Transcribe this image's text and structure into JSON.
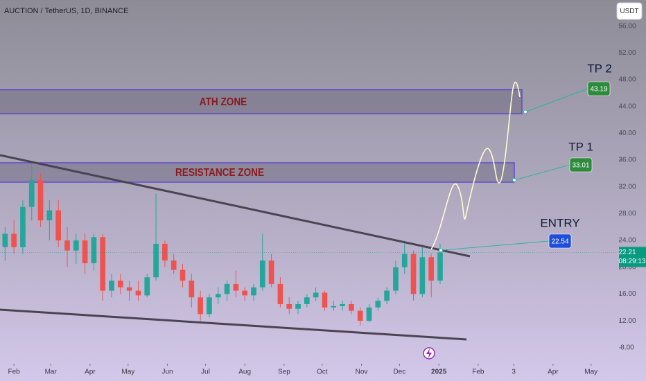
{
  "chart_data": {
    "type": "candlestick",
    "title": "AUCTION / TetherUS, 1D, BINANCE",
    "currency_button": "USDT",
    "x": [
      -7,
      0,
      7,
      14,
      21,
      28,
      35,
      42,
      49,
      56,
      63,
      70,
      77,
      84,
      91,
      98,
      105,
      112,
      119,
      126,
      133,
      140,
      147,
      154,
      161,
      168,
      175,
      182,
      189,
      196,
      203,
      210,
      217,
      224,
      231,
      238,
      245,
      252,
      259,
      266,
      273,
      280,
      287,
      294,
      301,
      308,
      315,
      322,
      329,
      336
    ],
    "open": [
      23,
      25,
      23,
      29,
      33,
      27,
      28.5,
      24,
      22.5,
      24,
      20.6,
      24.5,
      16.5,
      18,
      17,
      16.5,
      15.8,
      18.5,
      23.5,
      21,
      19.6,
      18,
      15.5,
      13,
      15.5,
      16,
      17.5,
      16.5,
      15.8,
      17,
      21,
      17.5,
      14.5,
      13.8,
      14.5,
      15.5,
      16.2,
      14,
      14.2,
      14.5,
      13.5,
      12,
      14,
      15,
      16.5,
      20,
      22,
      16,
      21.5,
      18
    ],
    "high": [
      26,
      27,
      30,
      35.6,
      34,
      30,
      30,
      26,
      25,
      25,
      25,
      25,
      19,
      19,
      18,
      18,
      19,
      31,
      24,
      22,
      20.5,
      19,
      16.5,
      16,
      17,
      18,
      19.5,
      17,
      17.5,
      25,
      22,
      18.5,
      15.5,
      15,
      16,
      17,
      16.5,
      15,
      15,
      15,
      14,
      14.5,
      15.5,
      17,
      21,
      23.7,
      22.5,
      23,
      22,
      23.5
    ],
    "low": [
      21,
      22,
      22,
      27,
      26,
      24,
      23,
      20,
      20.5,
      19,
      19.5,
      15,
      15.5,
      16,
      15,
      15,
      15.5,
      18,
      20,
      19,
      17,
      14,
      12,
      12.5,
      14.5,
      15,
      15.5,
      15,
      15,
      16.5,
      17,
      14,
      13,
      13,
      14,
      15,
      13.5,
      13.5,
      13.5,
      13,
      11.3,
      11.8,
      13.5,
      14.5,
      16,
      19,
      15,
      15.5,
      15.5,
      17.5
    ],
    "close": [
      25,
      23,
      29,
      33,
      27,
      28.5,
      24,
      22.5,
      24,
      20.6,
      24.5,
      16.5,
      18,
      17,
      16.5,
      15.8,
      18.5,
      23.5,
      21,
      19.6,
      18,
      15.5,
      13,
      15.5,
      16,
      17.5,
      16.5,
      15.8,
      17,
      21,
      17.5,
      14.5,
      13.8,
      14.5,
      15.5,
      16.2,
      14,
      14.2,
      14.5,
      13.5,
      12,
      14,
      15,
      16.5,
      20,
      22,
      16,
      21.5,
      18,
      22.21
    ],
    "up_color": "#26a69a",
    "down_color": "#ef5350",
    "xlim": [
      -11,
      477
    ],
    "xticks": [
      {
        "value": 0,
        "label": "Feb"
      },
      {
        "value": 29,
        "label": "Mar"
      },
      {
        "value": 60,
        "label": "Apr"
      },
      {
        "value": 90,
        "label": "May"
      },
      {
        "value": 121,
        "label": "Jun"
      },
      {
        "value": 151,
        "label": "Jul"
      },
      {
        "value": 182,
        "label": "Aug"
      },
      {
        "value": 213,
        "label": "Sep"
      },
      {
        "value": 243,
        "label": "Oct"
      },
      {
        "value": 274,
        "label": "Nov"
      },
      {
        "value": 304,
        "label": "Dec"
      },
      {
        "value": 335,
        "label": "2025"
      },
      {
        "value": 366,
        "label": "Feb"
      },
      {
        "value": 394,
        "label": "3"
      },
      {
        "value": 425,
        "label": "Apr"
      },
      {
        "value": 455,
        "label": "May"
      }
    ],
    "ylim": [
      5.6,
      59.9
    ],
    "yticks": [
      {
        "value": 8,
        "label": "8.00"
      },
      {
        "value": 12,
        "label": "12.00"
      },
      {
        "value": 16,
        "label": "16.00"
      },
      {
        "value": 20,
        "label": "20.00"
      },
      {
        "value": 24,
        "label": "24.00"
      },
      {
        "value": 28,
        "label": "28.00"
      },
      {
        "value": 32,
        "label": "32.00"
      },
      {
        "value": 36,
        "label": "36.00"
      },
      {
        "value": 40,
        "label": "40.00"
      },
      {
        "value": 44,
        "label": "44.00"
      },
      {
        "value": 48,
        "label": "48.00"
      },
      {
        "value": 52,
        "label": "52.00"
      },
      {
        "value": 56,
        "label": "56.00"
      }
    ],
    "last_price": 22.21,
    "countdown": "08:29:13",
    "last_price_color": "#089981",
    "zones": [
      {
        "label": "ATH ZONE",
        "range": [
          42.9,
          46.5
        ]
      },
      {
        "label": "RESISTANCE ZONE",
        "range": [
          32.7,
          35.6
        ]
      }
    ],
    "annotations": [
      {
        "label": "TP 2",
        "value": 43.19,
        "color": "#2e8b3e"
      },
      {
        "label": "TP 1",
        "value": 33.01,
        "color": "#2e8b3e"
      },
      {
        "label": "ENTRY",
        "value": 22.54,
        "color": "#1f4fd8"
      }
    ]
  }
}
